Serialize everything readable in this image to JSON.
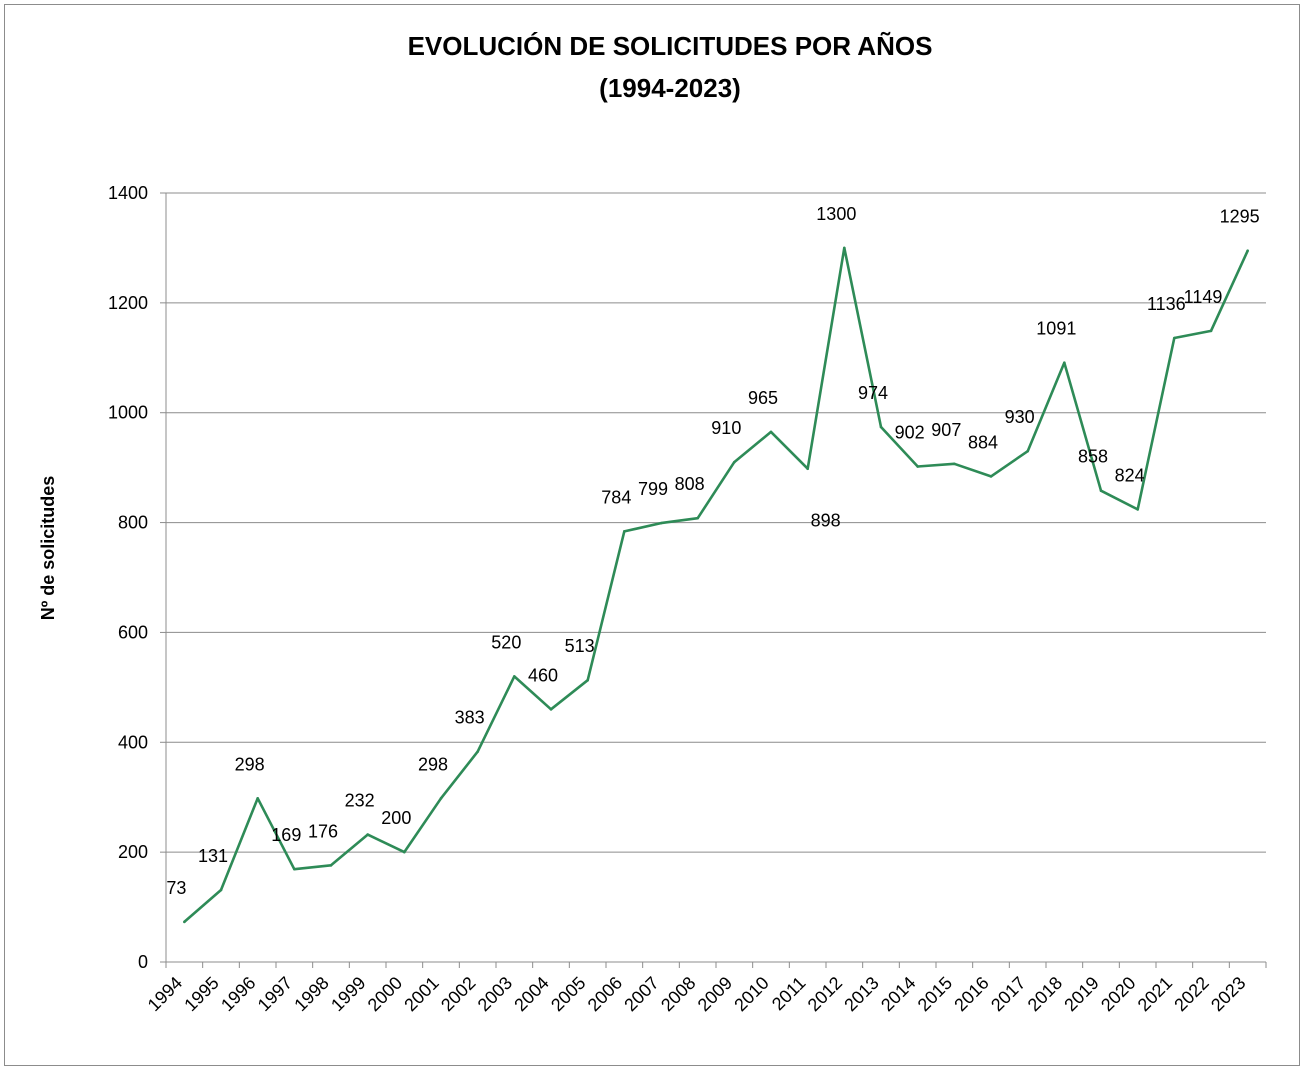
{
  "chart_data": {
    "type": "line",
    "title_line1": "EVOLUCIÓN DE SOLICITUDES POR AÑOS",
    "title_line2": "(1994-2023)",
    "xlabel": "",
    "ylabel": "Nº de solicitudes",
    "ylim": [
      0,
      1400
    ],
    "yticks": [
      "0",
      "200",
      "400",
      "600",
      "800",
      "1000",
      "1200",
      "1400"
    ],
    "grid": true,
    "legend": "none",
    "line_color": "#2e8b57",
    "categories": [
      "1994",
      "1995",
      "1996",
      "1997",
      "1998",
      "1999",
      "2000",
      "2001",
      "2002",
      "2003",
      "2004",
      "2005",
      "2006",
      "2007",
      "2008",
      "2009",
      "2010",
      "2011",
      "2012",
      "2013",
      "2014",
      "2015",
      "2016",
      "2017",
      "2018",
      "2019",
      "2020",
      "2021",
      "2022",
      "2023"
    ],
    "values": [
      73,
      131,
      298,
      169,
      176,
      232,
      200,
      298,
      383,
      520,
      460,
      513,
      784,
      799,
      808,
      910,
      965,
      898,
      1300,
      974,
      902,
      907,
      884,
      930,
      1091,
      858,
      824,
      1136,
      1149,
      1295
    ]
  }
}
